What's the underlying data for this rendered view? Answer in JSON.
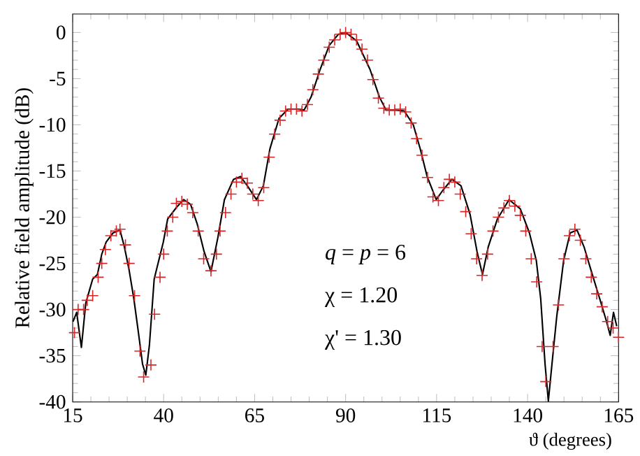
{
  "chart_data": {
    "type": "line",
    "xlabel": "ϑ (degrees)",
    "ylabel": "Relative field amplitude (dB)",
    "xlim": [
      15,
      165
    ],
    "xticks": [
      15,
      40,
      65,
      90,
      115,
      140,
      165
    ],
    "ylim": [
      -40,
      2
    ],
    "yticks": [
      0,
      -5,
      -10,
      -15,
      -20,
      -25,
      -30,
      -35,
      -40
    ],
    "annotations": [
      "*q* = *p* = 6",
      "χ = 1.20",
      "χ' = 1.30"
    ],
    "series": [
      {
        "color": "#000000",
        "marker": "none",
        "x": [
          15.1,
          16.1,
          17.4,
          18.6,
          20.5,
          21.8,
          23.0,
          24.2,
          26.1,
          28.0,
          29.2,
          30.5,
          31.8,
          33.0,
          34.2,
          35.1,
          36.1,
          37.4,
          39.9,
          41.1,
          43.6,
          45.5,
          47.4,
          49.2,
          51.1,
          53.0,
          54.9,
          56.7,
          59.2,
          61.1,
          63.0,
          65.5,
          67.4,
          69.2,
          71.7,
          74.2,
          76.8,
          78.6,
          80.5,
          83.0,
          85.5,
          88.0,
          90,
          93,
          96.7,
          99.3,
          101.1,
          103.6,
          106.1,
          108.6,
          110.5,
          112.4,
          114.9,
          116.7,
          119.2,
          121.7,
          124.2,
          126.1,
          127.6,
          129.2,
          131.7,
          134.9,
          138.0,
          140.5,
          142.4,
          143.6,
          144.8,
          145.7,
          146.7,
          148.0,
          149.9,
          151.7,
          153.6,
          155.5,
          157.4,
          159.8,
          161.7,
          162.7,
          163.6,
          164.5
        ],
        "values": [
          -31.3,
          -30.3,
          -34.1,
          -29.3,
          -26.7,
          -26.2,
          -24.0,
          -22.7,
          -21.7,
          -21.4,
          -23.2,
          -25.7,
          -28.8,
          -32.3,
          -35.9,
          -37.1,
          -33.8,
          -26.7,
          -22.7,
          -20.2,
          -18.9,
          -18.1,
          -18.6,
          -20.7,
          -23.7,
          -25.9,
          -22.2,
          -18.1,
          -15.9,
          -15.6,
          -16.6,
          -18.1,
          -16.6,
          -12.6,
          -9.3,
          -8.3,
          -8.3,
          -8.4,
          -7.0,
          -4.0,
          -1.4,
          -0.2,
          0,
          -0.9,
          -4.0,
          -7.0,
          -8.4,
          -8.4,
          -8.5,
          -10.0,
          -12.6,
          -15.6,
          -18.1,
          -17.1,
          -15.9,
          -16.6,
          -19.7,
          -23.7,
          -26.2,
          -23.2,
          -20.2,
          -18.1,
          -19.1,
          -21.7,
          -24.7,
          -28.8,
          -35.9,
          -39.9,
          -35.9,
          -30.8,
          -24.7,
          -21.7,
          -21.4,
          -23.2,
          -25.7,
          -28.8,
          -31.3,
          -32.8,
          -30.3,
          -31.8
        ]
      },
      {
        "type": "scatter",
        "color": "#d62728",
        "marker": "cross",
        "x": [
          15.5,
          16.5,
          18,
          19,
          20.5,
          22,
          23,
          24,
          25.5,
          27,
          28,
          29.5,
          30.5,
          32,
          33.5,
          34.5,
          36.5,
          37.5,
          39,
          40,
          41,
          42.5,
          43.5,
          45,
          46.5,
          48,
          49.5,
          51,
          53,
          54.5,
          55.5,
          57,
          58.5,
          60,
          61.5,
          63,
          64.5,
          66,
          67.5,
          69,
          70.5,
          72,
          73.5,
          75,
          76.5,
          78,
          79.5,
          81,
          82.5,
          84,
          85.5,
          87,
          88.5,
          90,
          91.5,
          93,
          94.5,
          96,
          97.5,
          99,
          100.5,
          102,
          103.5,
          105,
          106.5,
          108,
          109.5,
          111,
          112.5,
          114,
          115.5,
          117,
          118.5,
          120,
          121.5,
          123,
          124.5,
          126,
          127.5,
          129,
          130.5,
          132,
          133.5,
          135,
          136.5,
          138,
          139.5,
          141,
          142.5,
          144,
          145,
          147,
          148.5,
          150,
          151.5,
          153,
          154.5,
          156,
          157.5,
          159,
          160.5,
          162,
          163.5,
          165
        ],
        "values": [
          -32.5,
          -30,
          -30,
          -29,
          -28.5,
          -26.5,
          -25,
          -23.5,
          -22,
          -21.5,
          -21.3,
          -23,
          -25,
          -28.5,
          -34.5,
          -37.3,
          -36,
          -30.5,
          -26.5,
          -24,
          -21.5,
          -20,
          -18.5,
          -18.3,
          -18.6,
          -19.5,
          -21.5,
          -24.5,
          -25.8,
          -24,
          -21.5,
          -19.5,
          -17.5,
          -16.2,
          -15.8,
          -16.3,
          -17.5,
          -18.2,
          -16.8,
          -13.5,
          -11,
          -9.5,
          -8.5,
          -8.3,
          -8.3,
          -8.5,
          -7.8,
          -6.2,
          -4.5,
          -3,
          -1.6,
          -0.8,
          -0.2,
          0,
          -0.2,
          -0.8,
          -1.8,
          -3,
          -5.1,
          -7.1,
          -8.2,
          -8.4,
          -8.4,
          -8.3,
          -8.6,
          -9.8,
          -11.5,
          -13.3,
          -15.7,
          -17.8,
          -18.2,
          -16.8,
          -15.9,
          -16.2,
          -17.5,
          -19.4,
          -21.8,
          -24.5,
          -26.3,
          -24,
          -21.5,
          -20,
          -19,
          -18.2,
          -18.8,
          -19.8,
          -21.5,
          -24.5,
          -27,
          -34,
          -37.8,
          -34,
          -29.5,
          -24.5,
          -22,
          -21.3,
          -22.5,
          -24.5,
          -26.5,
          -28.3,
          -29.7,
          -31.3,
          -32,
          -33
        ]
      }
    ]
  }
}
